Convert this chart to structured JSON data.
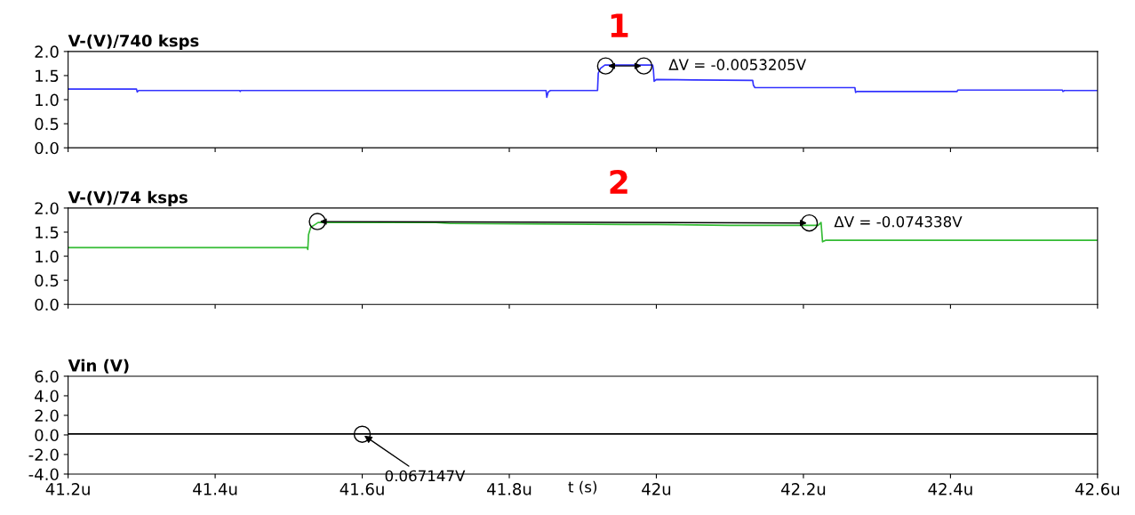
{
  "chart_data": [
    {
      "type": "line",
      "title": "V-(V)/740 ksps",
      "xlim": [
        41.2,
        42.6
      ],
      "ylim": [
        0.0,
        2.0
      ],
      "yticks": [
        {
          "value": 0,
          "label": "0.0"
        },
        {
          "value": 0.5,
          "label": "0.5"
        },
        {
          "value": 1,
          "label": "1.0"
        },
        {
          "value": 1.5,
          "label": "1.5"
        },
        {
          "value": 2,
          "label": "2.0"
        }
      ],
      "xticks": [
        {
          "value": 41.2,
          "label": null
        },
        {
          "value": 41.4,
          "label": null
        },
        {
          "value": 41.6,
          "label": null
        },
        {
          "value": 41.8,
          "label": null
        },
        {
          "value": 42.0,
          "label": null
        },
        {
          "value": 42.2,
          "label": null
        },
        {
          "value": 42.4,
          "label": null
        },
        {
          "value": 42.6,
          "label": null
        }
      ],
      "tick_labels": "y",
      "grid": false,
      "legend": false,
      "series": [
        {
          "color": "#3333ff",
          "x": [
            41.2,
            41.293,
            41.294,
            41.296,
            41.433,
            41.434,
            41.435,
            41.711,
            41.85,
            41.851,
            41.853,
            41.856,
            41.92,
            41.921,
            41.924,
            41.93,
            41.995,
            41.996,
            41.997,
            42.0,
            42.05,
            42.131,
            42.132,
            42.134,
            42.27,
            42.271,
            42.273,
            42.409,
            42.41,
            42.552,
            42.553,
            42.555,
            42.6
          ],
          "values": [
            1.22,
            1.22,
            1.16,
            1.19,
            1.19,
            1.17,
            1.19,
            1.19,
            1.19,
            1.05,
            1.16,
            1.19,
            1.19,
            1.55,
            1.65,
            1.72,
            1.72,
            1.62,
            1.38,
            1.42,
            1.41,
            1.4,
            1.3,
            1.25,
            1.25,
            1.15,
            1.17,
            1.17,
            1.2,
            1.2,
            1.17,
            1.19,
            1.19
          ]
        },
        {
          "type": "scatter",
          "color": "#000000",
          "marker": "circle",
          "x": [
            41.931,
            41.983
          ],
          "values": [
            1.7,
            1.7
          ]
        }
      ],
      "annotations": [
        "1",
        {
          "text": "ΔV = -0.0053205V",
          "x": 41.983,
          "y": 1.7
        }
      ]
    },
    {
      "type": "line",
      "title": "V-(V)/74 ksps",
      "xlim": [
        41.2,
        42.6
      ],
      "ylim": [
        0.0,
        2.0
      ],
      "yticks": [
        {
          "value": 0,
          "label": "0.0"
        },
        {
          "value": 0.5,
          "label": "0.5"
        },
        {
          "value": 1,
          "label": "1.0"
        },
        {
          "value": 1.5,
          "label": "1.5"
        },
        {
          "value": 2,
          "label": "2.0"
        }
      ],
      "xticks": [
        {
          "value": 41.2,
          "label": null
        },
        {
          "value": 41.4,
          "label": null
        },
        {
          "value": 41.6,
          "label": null
        },
        {
          "value": 41.8,
          "label": null
        },
        {
          "value": 42.0,
          "label": null
        },
        {
          "value": 42.2,
          "label": null
        },
        {
          "value": 42.4,
          "label": null
        },
        {
          "value": 42.6,
          "label": null
        }
      ],
      "tick_labels": "y",
      "grid": false,
      "legend": false,
      "series": [
        {
          "color": "#33bb33",
          "x": [
            41.2,
            41.525,
            41.526,
            41.527,
            41.53,
            41.535,
            41.54,
            41.7,
            41.72,
            41.96,
            42.0,
            42.1,
            42.22,
            42.224,
            42.226,
            42.23,
            42.6
          ],
          "values": [
            1.18,
            1.18,
            1.14,
            1.45,
            1.6,
            1.65,
            1.7,
            1.7,
            1.68,
            1.66,
            1.66,
            1.64,
            1.64,
            1.7,
            1.3,
            1.33,
            1.33
          ]
        },
        {
          "type": "scatter",
          "color": "#000000",
          "marker": "circle",
          "x": [
            41.539,
            42.208
          ],
          "values": [
            1.72,
            1.69
          ]
        }
      ],
      "annotations": [
        "2",
        {
          "text": "ΔV = -0.074338V",
          "x": 42.208,
          "y": 1.69
        }
      ]
    },
    {
      "type": "line",
      "title": "Vin (V)",
      "xlabel": "t (s)",
      "xlim": [
        41.2,
        42.6
      ],
      "ylim": [
        -4.0,
        6.0
      ],
      "yticks": [
        {
          "value": -4,
          "label": "-4.0"
        },
        {
          "value": -2,
          "label": "-2.0"
        },
        {
          "value": 0,
          "label": "0.0"
        },
        {
          "value": 2,
          "label": "2.0"
        },
        {
          "value": 4,
          "label": "4.0"
        },
        {
          "value": 6,
          "label": "6.0"
        }
      ],
      "xticks": [
        {
          "value": 41.2,
          "label": "41.2u"
        },
        {
          "value": 41.4,
          "label": "41.4u"
        },
        {
          "value": 41.6,
          "label": "41.6u"
        },
        {
          "value": 41.8,
          "label": "41.8u"
        },
        {
          "value": 42.0,
          "label": "42u"
        },
        {
          "value": 42.2,
          "label": "42.2u"
        },
        {
          "value": 42.4,
          "label": "42.4u"
        },
        {
          "value": 42.6,
          "label": "42.6u"
        }
      ],
      "grid": false,
      "legend": false,
      "series": [
        {
          "color": "#000000",
          "x": [
            41.2,
            42.6
          ],
          "values": [
            0.1,
            0.1
          ]
        },
        {
          "type": "scatter",
          "color": "#000000",
          "marker": "circle",
          "x": [
            41.6
          ],
          "values": [
            0.067147
          ]
        }
      ],
      "annotations": [
        {
          "text": "0.067147V",
          "x": 41.6,
          "y": 0.067147
        }
      ]
    }
  ]
}
